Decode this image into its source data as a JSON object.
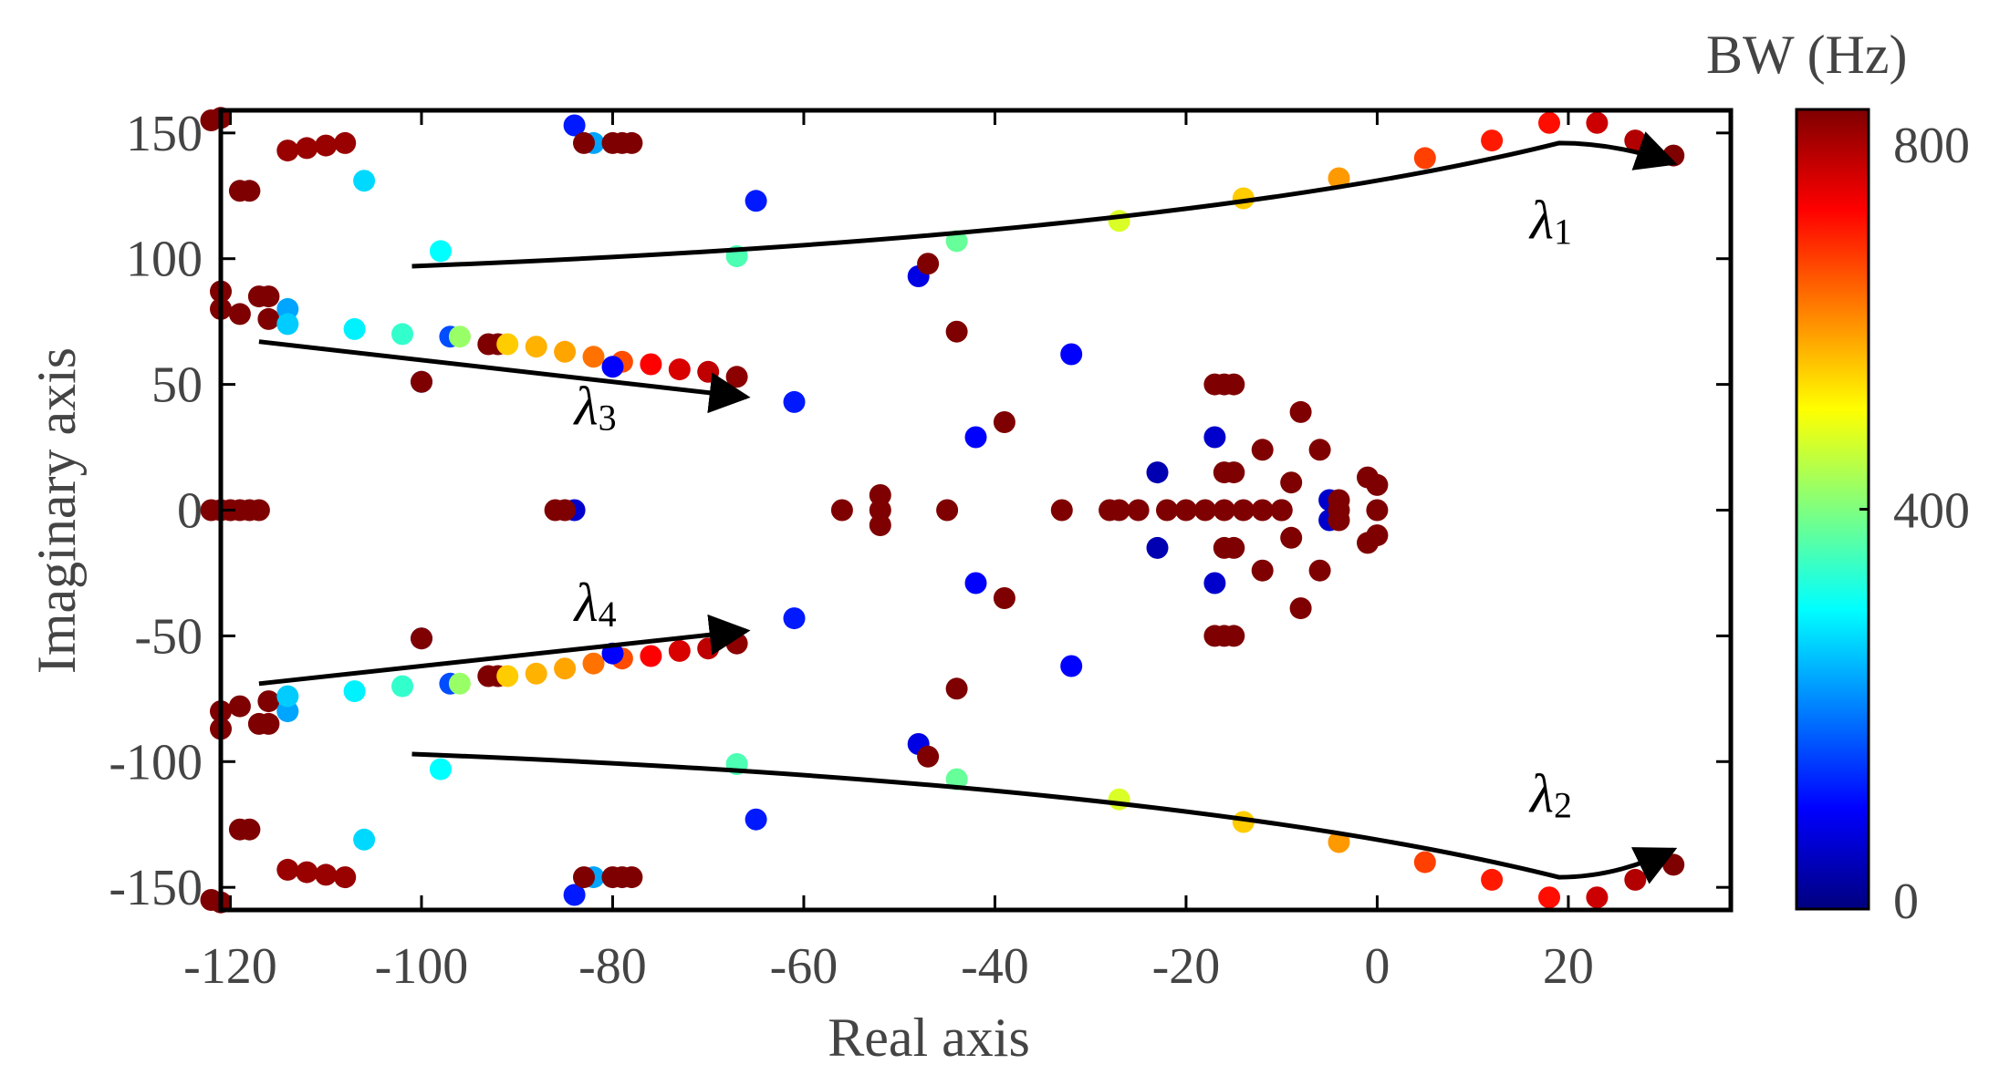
{
  "chart_data": {
    "type": "scatter",
    "title": "",
    "xlabel": "Real axis",
    "ylabel": "Imaginary axis",
    "xlim": [
      -121,
      37
    ],
    "ylim": [
      -159,
      159
    ],
    "xticks": [
      -120,
      -100,
      -80,
      -60,
      -40,
      -20,
      0,
      20
    ],
    "yticks": [
      150,
      100,
      50,
      0,
      -50,
      -100,
      -150
    ],
    "xtick_labels": [
      "-120",
      "-100",
      "-80",
      "-60",
      "-40",
      "-20",
      "0",
      "20"
    ],
    "ytick_labels": [
      "150",
      "100",
      "50",
      "0",
      "-50",
      "-100",
      "-150"
    ],
    "grid": false,
    "colorbar": {
      "label": "BW (Hz)",
      "min": 0,
      "max": 800,
      "tick_values": [
        800,
        400,
        0
      ],
      "tick_labels": [
        "800",
        "400",
        "0"
      ],
      "colormap": "jet",
      "colors": [
        "#00007f",
        "#0000ff",
        "#007fff",
        "#00ffff",
        "#7fff7f",
        "#ffff00",
        "#ff7f00",
        "#ff0000",
        "#7f0000"
      ]
    },
    "annotations": [
      {
        "label": "λ",
        "sub": "1",
        "path": [
          [
            -101,
            97
          ],
          [
            -20,
            109
          ],
          [
            19,
            146
          ],
          [
            31,
            138
          ]
        ]
      },
      {
        "label": "λ",
        "sub": "2",
        "path": [
          [
            -101,
            -97
          ],
          [
            -20,
            -109
          ],
          [
            19,
            -146
          ],
          [
            31,
            -135
          ]
        ]
      },
      {
        "label": "λ",
        "sub": "3",
        "path": [
          [
            -117,
            67
          ],
          [
            -66,
            45
          ]
        ]
      },
      {
        "label": "λ",
        "sub": "4",
        "path": [
          [
            -117,
            -69
          ],
          [
            -66,
            -48
          ]
        ]
      }
    ],
    "annotation_positions": [
      [
        16,
        108
      ],
      [
        16,
        -120
      ],
      [
        -84,
        34
      ],
      [
        -84,
        -44
      ]
    ],
    "points": [
      [
        -121,
        156,
        800
      ],
      [
        -122,
        155,
        800
      ],
      [
        -121,
        -156,
        800
      ],
      [
        -122,
        -155,
        800
      ],
      [
        -119,
        127,
        800
      ],
      [
        -118,
        127,
        800
      ],
      [
        -119,
        -127,
        800
      ],
      [
        -118,
        -127,
        800
      ],
      [
        -114,
        143,
        780
      ],
      [
        -112,
        144,
        780
      ],
      [
        -110,
        145,
        780
      ],
      [
        -108,
        146,
        780
      ],
      [
        -114,
        -143,
        780
      ],
      [
        -112,
        -144,
        780
      ],
      [
        -110,
        -145,
        780
      ],
      [
        -108,
        -146,
        780
      ],
      [
        -121,
        87,
        800
      ],
      [
        -121,
        80,
        800
      ],
      [
        -119,
        78,
        800
      ],
      [
        -117,
        85,
        800
      ],
      [
        -116,
        85,
        800
      ],
      [
        -116,
        76,
        800
      ],
      [
        -121,
        -87,
        800
      ],
      [
        -121,
        -80,
        800
      ],
      [
        -119,
        -78,
        800
      ],
      [
        -117,
        -85,
        800
      ],
      [
        -116,
        -85,
        800
      ],
      [
        -116,
        -76,
        800
      ],
      [
        -114,
        80,
        230
      ],
      [
        -114,
        74,
        260
      ],
      [
        -114,
        -80,
        230
      ],
      [
        -114,
        -74,
        260
      ],
      [
        -106,
        131,
        270
      ],
      [
        -106,
        -131,
        270
      ],
      [
        -107,
        72,
        290
      ],
      [
        -107,
        -72,
        290
      ],
      [
        -102,
        70,
        340
      ],
      [
        -102,
        -70,
        340
      ],
      [
        -100,
        51,
        160
      ],
      [
        -100,
        -51,
        160
      ],
      [
        -100,
        51,
        800
      ],
      [
        -100,
        -51,
        800
      ],
      [
        -98,
        103,
        300
      ],
      [
        -98,
        -103,
        300
      ],
      [
        -97,
        69,
        160
      ],
      [
        -96,
        69,
        420
      ],
      [
        -97,
        -69,
        160
      ],
      [
        -96,
        -69,
        420
      ],
      [
        -93,
        66,
        800
      ],
      [
        -92,
        66,
        800
      ],
      [
        -91,
        66,
        540
      ],
      [
        -93,
        -66,
        800
      ],
      [
        -92,
        -66,
        800
      ],
      [
        -91,
        -66,
        540
      ],
      [
        -88,
        65,
        560
      ],
      [
        -85,
        63,
        570
      ],
      [
        -82,
        61,
        610
      ],
      [
        -79,
        59,
        640
      ],
      [
        -88,
        -65,
        560
      ],
      [
        -85,
        -63,
        570
      ],
      [
        -82,
        -61,
        610
      ],
      [
        -79,
        -59,
        640
      ],
      [
        -80,
        57,
        100
      ],
      [
        -80,
        -57,
        100
      ],
      [
        -76,
        58,
        700
      ],
      [
        -73,
        56,
        730
      ],
      [
        -70,
        55,
        750
      ],
      [
        -67,
        53,
        790
      ],
      [
        -76,
        -58,
        700
      ],
      [
        -73,
        -56,
        730
      ],
      [
        -70,
        -55,
        750
      ],
      [
        -67,
        -53,
        790
      ],
      [
        -84,
        153,
        120
      ],
      [
        -84,
        -153,
        120
      ],
      [
        -82,
        146,
        230
      ],
      [
        -83,
        146,
        800
      ],
      [
        -80,
        146,
        800
      ],
      [
        -79,
        146,
        800
      ],
      [
        -78,
        146,
        800
      ],
      [
        -82,
        -146,
        230
      ],
      [
        -83,
        -146,
        800
      ],
      [
        -80,
        -146,
        800
      ],
      [
        -79,
        -146,
        800
      ],
      [
        -78,
        -146,
        800
      ],
      [
        -122,
        0,
        800
      ],
      [
        -121,
        0,
        800
      ],
      [
        -120,
        0,
        800
      ],
      [
        -119,
        0,
        800
      ],
      [
        -118,
        0,
        800
      ],
      [
        -117,
        0,
        800
      ],
      [
        -84,
        0,
        60
      ],
      [
        -86,
        0,
        800
      ],
      [
        -85,
        0,
        800
      ],
      [
        -67,
        101,
        360
      ],
      [
        -67,
        -101,
        360
      ],
      [
        -65,
        123,
        120
      ],
      [
        -65,
        -123,
        120
      ],
      [
        -61,
        43,
        120
      ],
      [
        -61,
        -43,
        120
      ],
      [
        -56,
        0,
        800
      ],
      [
        -52,
        6,
        800
      ],
      [
        -52,
        0,
        800
      ],
      [
        -52,
        -6,
        800
      ],
      [
        -48,
        93,
        80
      ],
      [
        -48,
        -93,
        80
      ],
      [
        -47,
        98,
        800
      ],
      [
        -47,
        -98,
        800
      ],
      [
        -44,
        107,
        380
      ],
      [
        -44,
        -107,
        380
      ],
      [
        -45,
        0,
        800
      ],
      [
        -44,
        71,
        800
      ],
      [
        -44,
        -71,
        800
      ],
      [
        -42,
        29,
        100
      ],
      [
        -42,
        -29,
        100
      ],
      [
        -39,
        35,
        800
      ],
      [
        -39,
        -35,
        800
      ],
      [
        -32,
        62,
        100
      ],
      [
        -32,
        -62,
        100
      ],
      [
        -33,
        0,
        800
      ],
      [
        -28,
        0,
        800
      ],
      [
        -27,
        0,
        800
      ],
      [
        -25,
        0,
        800
      ],
      [
        -27,
        115,
        470
      ],
      [
        -27,
        -115,
        470
      ],
      [
        -23,
        15,
        40
      ],
      [
        -23,
        -15,
        40
      ],
      [
        -22,
        0,
        800
      ],
      [
        -20,
        0,
        800
      ],
      [
        -18,
        0,
        800
      ],
      [
        -16,
        0,
        800
      ],
      [
        -14,
        0,
        800
      ],
      [
        -12,
        0,
        800
      ],
      [
        -10,
        0,
        800
      ],
      [
        -17,
        50,
        800
      ],
      [
        -16,
        50,
        800
      ],
      [
        -15,
        50,
        800
      ],
      [
        -17,
        -50,
        800
      ],
      [
        -16,
        -50,
        800
      ],
      [
        -15,
        -50,
        800
      ],
      [
        -17,
        29,
        60
      ],
      [
        -17,
        -29,
        60
      ],
      [
        -16,
        15,
        800
      ],
      [
        -15,
        15,
        800
      ],
      [
        -16,
        -15,
        800
      ],
      [
        -15,
        -15,
        800
      ],
      [
        -14,
        124,
        540
      ],
      [
        -14,
        -124,
        540
      ],
      [
        -12,
        24,
        800
      ],
      [
        -12,
        -24,
        800
      ],
      [
        -8,
        39,
        800
      ],
      [
        -8,
        -39,
        800
      ],
      [
        -10,
        0,
        800
      ],
      [
        -9,
        11,
        800
      ],
      [
        -9,
        -11,
        800
      ],
      [
        -6,
        24,
        800
      ],
      [
        -6,
        -24,
        800
      ],
      [
        -5,
        4,
        60
      ],
      [
        -5,
        -4,
        60
      ],
      [
        -4,
        0,
        800
      ],
      [
        -4,
        4,
        800
      ],
      [
        -4,
        -4,
        800
      ],
      [
        -4,
        132,
        580
      ],
      [
        -4,
        -132,
        580
      ],
      [
        -1,
        13,
        800
      ],
      [
        0,
        10,
        800
      ],
      [
        -1,
        -13,
        800
      ],
      [
        0,
        -10,
        800
      ],
      [
        0,
        0,
        800
      ],
      [
        5,
        140,
        650
      ],
      [
        5,
        -140,
        650
      ],
      [
        12,
        147,
        680
      ],
      [
        12,
        -147,
        680
      ],
      [
        18,
        154,
        690
      ],
      [
        18,
        -154,
        690
      ],
      [
        23,
        154,
        740
      ],
      [
        23,
        -154,
        740
      ],
      [
        27,
        147,
        760
      ],
      [
        27,
        -147,
        760
      ],
      [
        31,
        141,
        800
      ],
      [
        31,
        -141,
        800
      ]
    ]
  }
}
